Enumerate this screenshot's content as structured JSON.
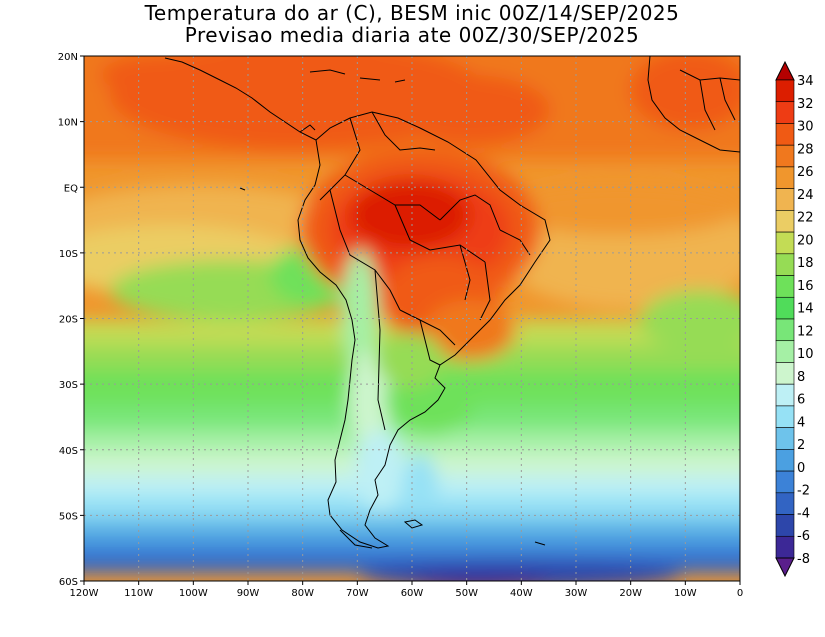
{
  "title": {
    "line1": "Temperatura do ar (C), BESM inic 00Z/14/SEP/2025",
    "line2": "Previsao media diaria ate 00Z/30/SEP/2025"
  },
  "map": {
    "lon_range": [
      -120,
      0
    ],
    "lat_range": [
      -60,
      20
    ],
    "x_ticks": [
      "120W",
      "110W",
      "100W",
      "90W",
      "80W",
      "70W",
      "60W",
      "50W",
      "40W",
      "30W",
      "20W",
      "10W",
      "0"
    ],
    "y_ticks": [
      "20N",
      "10N",
      "EQ",
      "10S",
      "20S",
      "30S",
      "40S",
      "50S",
      "60S"
    ],
    "gridlines": "dotted"
  },
  "colorbar": {
    "labels": [
      "34",
      "32",
      "30",
      "28",
      "26",
      "24",
      "22",
      "20",
      "18",
      "16",
      "14",
      "12",
      "10",
      "8",
      "6",
      "4",
      "2",
      "0",
      "-2",
      "-4",
      "-6",
      "-8"
    ],
    "colors": [
      "#b40000",
      "#dc1e00",
      "#ee3c14",
      "#f05a14",
      "#f0781e",
      "#f0962d",
      "#f0b450",
      "#ebcd64",
      "#c3dc55",
      "#96dc55",
      "#6ee15a",
      "#50dc5a",
      "#78e678",
      "#a5f0a5",
      "#cdf5cd",
      "#bef0f5",
      "#96e1f5",
      "#6ec3eb",
      "#4ba0e1",
      "#3c82d7",
      "#3264c3",
      "#2d46aa",
      "#3c2896",
      "#5a1e8c"
    ]
  }
}
